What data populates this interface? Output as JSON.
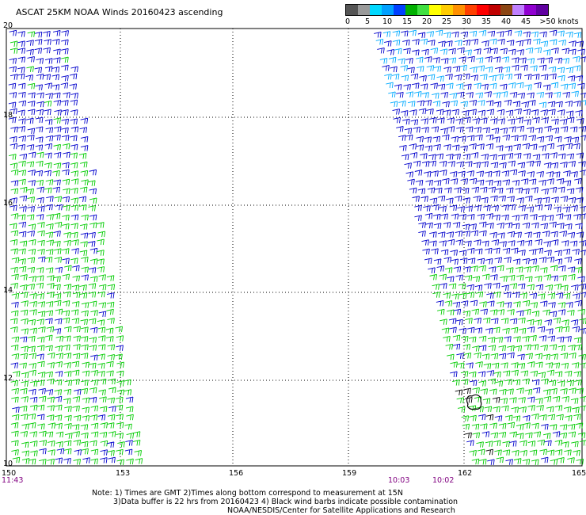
{
  "title": "ASCAT 25KM NOAA Winds 20160423 ascending",
  "legend": {
    "colors": [
      "#555555",
      "#9a9a9a",
      "#00d8ff",
      "#00a0ff",
      "#0040ff",
      "#00b000",
      "#40e040",
      "#ffff00",
      "#ffcc00",
      "#ff9000",
      "#ff4000",
      "#ff0000",
      "#c00000",
      "#8b4513",
      "#c080ff",
      "#9000d0",
      "#6000a0"
    ],
    "ticks": [
      "0",
      "5",
      "10",
      "15",
      "20",
      "25",
      "30",
      "35",
      "40",
      "45",
      ">50 knots"
    ]
  },
  "latitudes": [
    "20",
    "18",
    "16",
    "14",
    "12",
    "10"
  ],
  "longitudes": [
    "150",
    "153",
    "156",
    "159",
    "162",
    "165"
  ],
  "times": [
    "11:43",
    "10:03",
    "10:02"
  ],
  "notes": [
    "Note: 1) Times are GMT 2)Times along bottom correspond to measurement at 15N",
    "3)Data buffer is 22 hrs from 20160423 4) Black wind barbs indicate possible contamination",
    "NOAA/NESDIS/Center for Satellite Applications and Research"
  ],
  "barb_colors": {
    "low": "#0000cc",
    "mid": "#00aaff",
    "calm": "#00cc00",
    "contaminated": "#000000"
  }
}
